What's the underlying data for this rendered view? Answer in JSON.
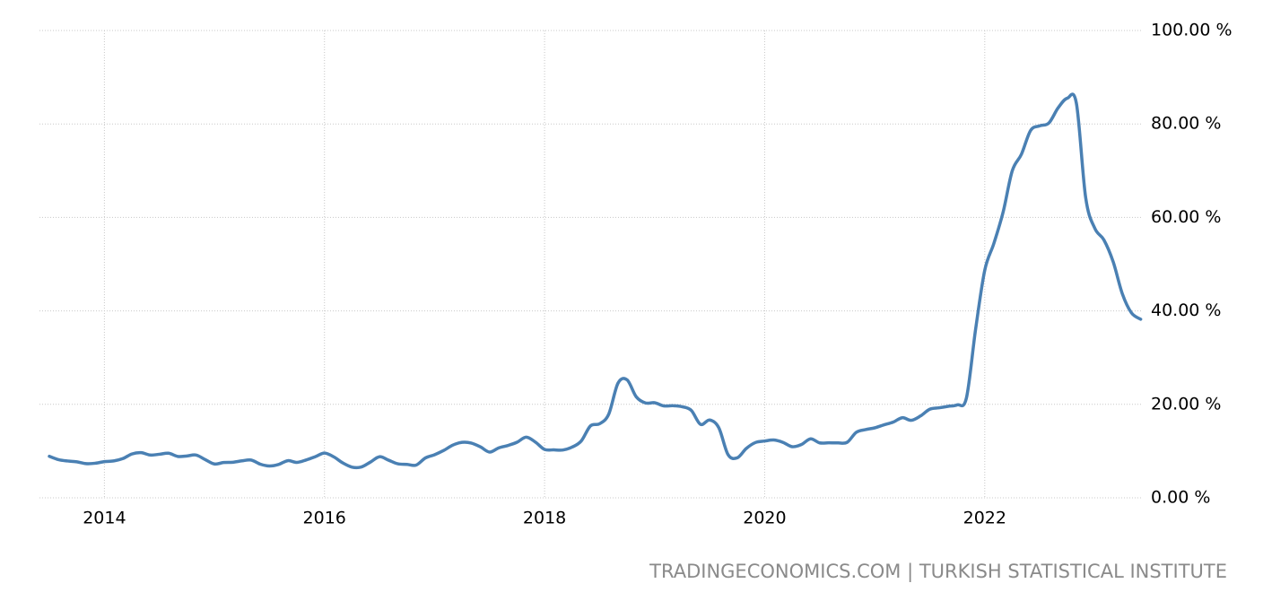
{
  "chart_data": {
    "type": "line",
    "source": "TRADINGECONOMICS.COM | TURKISH STATISTICAL INSTITUTE",
    "color": "#4a80b3",
    "grid": true,
    "x": [
      2013.5,
      2013.583,
      2013.667,
      2013.75,
      2013.833,
      2013.917,
      2014,
      2014.083,
      2014.167,
      2014.25,
      2014.333,
      2014.417,
      2014.5,
      2014.583,
      2014.667,
      2014.75,
      2014.833,
      2014.917,
      2015,
      2015.083,
      2015.167,
      2015.25,
      2015.333,
      2015.417,
      2015.5,
      2015.583,
      2015.667,
      2015.75,
      2015.833,
      2015.917,
      2016,
      2016.083,
      2016.167,
      2016.25,
      2016.333,
      2016.417,
      2016.5,
      2016.583,
      2016.667,
      2016.75,
      2016.833,
      2016.917,
      2017,
      2017.083,
      2017.167,
      2017.25,
      2017.333,
      2017.417,
      2017.5,
      2017.583,
      2017.667,
      2017.75,
      2017.833,
      2017.917,
      2018,
      2018.083,
      2018.167,
      2018.25,
      2018.333,
      2018.417,
      2018.5,
      2018.583,
      2018.667,
      2018.75,
      2018.833,
      2018.917,
      2019,
      2019.083,
      2019.167,
      2019.25,
      2019.333,
      2019.417,
      2019.5,
      2019.583,
      2019.667,
      2019.75,
      2019.833,
      2019.917,
      2020,
      2020.083,
      2020.167,
      2020.25,
      2020.333,
      2020.417,
      2020.5,
      2020.583,
      2020.667,
      2020.75,
      2020.833,
      2020.917,
      2021,
      2021.083,
      2021.167,
      2021.25,
      2021.333,
      2021.417,
      2021.5,
      2021.583,
      2021.667,
      2021.75,
      2021.833,
      2021.917,
      2022,
      2022.083,
      2022.167,
      2022.25,
      2022.333,
      2022.417,
      2022.5,
      2022.583,
      2022.667,
      2022.75,
      2022.833,
      2022.917,
      2023,
      2023.083,
      2023.167,
      2023.25,
      2023.333,
      2023.417
    ],
    "values": [
      8.88,
      8.17,
      7.88,
      7.71,
      7.32,
      7.4,
      7.75,
      7.89,
      8.39,
      9.38,
      9.66,
      9.16,
      9.32,
      9.54,
      8.86,
      8.96,
      9.15,
      8.17,
      7.24,
      7.55,
      7.61,
      7.91,
      8.09,
      7.2,
      6.81,
      7.14,
      7.95,
      7.58,
      8.1,
      8.81,
      9.58,
      8.78,
      7.46,
      6.57,
      6.58,
      7.64,
      8.79,
      8.05,
      7.28,
      7.16,
      7.0,
      8.53,
      9.22,
      10.13,
      11.29,
      11.87,
      11.72,
      10.9,
      9.79,
      10.68,
      11.2,
      11.9,
      12.98,
      11.92,
      10.35,
      10.26,
      10.23,
      10.85,
      12.15,
      15.39,
      15.85,
      17.9,
      24.52,
      25.24,
      21.62,
      20.3,
      20.35,
      19.67,
      19.71,
      19.5,
      18.71,
      15.72,
      16.65,
      15.01,
      9.26,
      8.55,
      10.56,
      11.84,
      12.15,
      12.37,
      11.86,
      10.94,
      11.39,
      12.62,
      11.76,
      11.77,
      11.75,
      11.89,
      14.03,
      14.6,
      14.97,
      15.61,
      16.19,
      17.14,
      16.59,
      17.53,
      18.95,
      19.25,
      19.58,
      19.89,
      21.31,
      36.08,
      48.69,
      54.44,
      61.14,
      69.97,
      73.5,
      78.62,
      79.6,
      80.21,
      83.45,
      85.51,
      84.39,
      64.27,
      57.68,
      55.18,
      50.51,
      43.68,
      39.59,
      38.21
    ],
    "xlim": [
      2013.41,
      2023.42
    ],
    "xticks": [
      2014,
      2016,
      2018,
      2020,
      2022
    ],
    "ylim": [
      0,
      100
    ],
    "yticks": [
      {
        "value": 0,
        "label": "0.00 %"
      },
      {
        "value": 20,
        "label": "20.00 %"
      },
      {
        "value": 40,
        "label": "40.00 %"
      },
      {
        "value": 60,
        "label": "60.00 %"
      },
      {
        "value": 80,
        "label": "80.00 %"
      },
      {
        "value": 100,
        "label": "100.00 %"
      }
    ]
  }
}
